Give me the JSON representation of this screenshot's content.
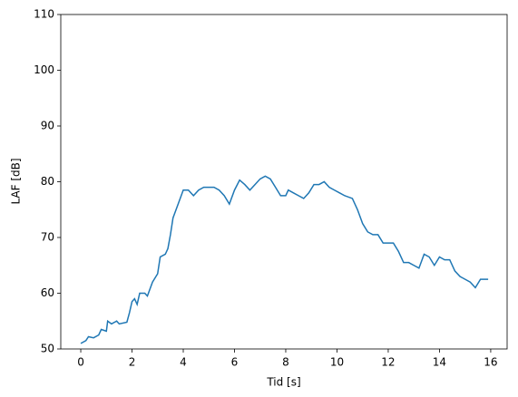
{
  "chart_data": {
    "type": "line",
    "xlabel": "Tid [s]",
    "ylabel": "LAF [dB]",
    "x": [
      0,
      0.2,
      0.3,
      0.5,
      0.7,
      0.8,
      1.0,
      1.05,
      1.2,
      1.4,
      1.5,
      1.8,
      1.9,
      2.0,
      2.1,
      2.2,
      2.3,
      2.5,
      2.6,
      2.8,
      3.0,
      3.1,
      3.3,
      3.4,
      3.5,
      3.6,
      3.8,
      4.0,
      4.2,
      4.4,
      4.6,
      4.8,
      5.0,
      5.2,
      5.4,
      5.6,
      5.8,
      6.0,
      6.2,
      6.4,
      6.6,
      6.8,
      7.0,
      7.2,
      7.4,
      7.6,
      7.8,
      8.0,
      8.1,
      8.3,
      8.5,
      8.7,
      8.9,
      9.1,
      9.3,
      9.5,
      9.7,
      9.9,
      10.1,
      10.3,
      10.6,
      10.8,
      11.0,
      11.2,
      11.4,
      11.6,
      11.8,
      12.0,
      12.2,
      12.4,
      12.6,
      12.8,
      13.0,
      13.2,
      13.4,
      13.6,
      13.8,
      14.0,
      14.2,
      14.4,
      14.6,
      14.8,
      15.0,
      15.2,
      15.4,
      15.6,
      15.8,
      15.9
    ],
    "values": [
      51,
      51.5,
      52.2,
      52,
      52.5,
      53.5,
      53.2,
      55,
      54.5,
      55,
      54.5,
      54.8,
      56.5,
      58.5,
      59,
      58,
      60,
      60,
      59.5,
      62,
      63.5,
      66.5,
      67,
      68,
      70.5,
      73.5,
      76,
      78.5,
      78.5,
      77.5,
      78.5,
      79,
      79,
      79,
      78.5,
      77.5,
      76,
      78.5,
      80.3,
      79.5,
      78.5,
      79.5,
      80.5,
      81,
      80.5,
      79,
      77.5,
      77.5,
      78.5,
      78,
      77.5,
      77,
      78,
      79.5,
      79.5,
      80,
      79,
      78.5,
      78,
      77.5,
      77,
      75,
      72.5,
      71,
      70.5,
      70.5,
      69,
      69,
      69,
      67.5,
      65.5,
      65.5,
      65,
      64.5,
      67,
      66.5,
      65,
      66.5,
      66,
      66,
      64,
      63,
      62.5,
      62,
      61,
      62.5,
      62.5,
      62.5
    ],
    "color": "#1f77b4",
    "xlim": [
      -0.78,
      16.64
    ],
    "xticks": [
      0,
      2,
      4,
      6,
      8,
      10,
      12,
      14,
      16
    ],
    "ylim": [
      50,
      110
    ],
    "yticks": [
      50,
      60,
      70,
      80,
      90,
      100,
      110
    ]
  }
}
